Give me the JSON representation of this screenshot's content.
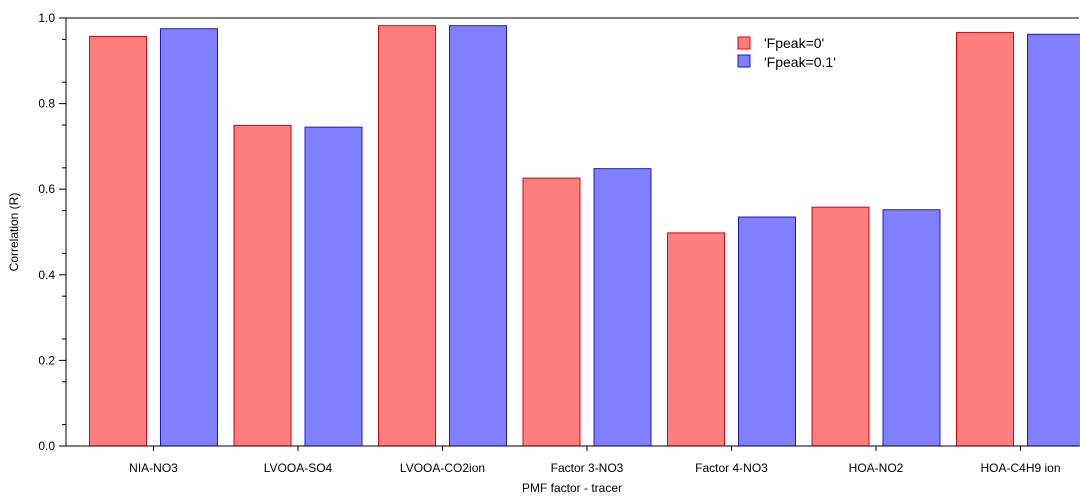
{
  "chart_data": {
    "type": "bar",
    "xlabel": "PMF factor - tracer",
    "ylabel": "Correlation (R)",
    "ylim": [
      0,
      1.0
    ],
    "yticks": [
      "0.0",
      "0.2",
      "0.4",
      "0.6",
      "0.8",
      "1.0"
    ],
    "grid": false,
    "legend_position": "top-right",
    "categories": [
      "NIA-NO3",
      "LVOOA-SO4",
      "LVOOA-CO2ion",
      "Factor 3-NO3",
      "Factor 4-NO3",
      "HOA-NO2",
      "HOA-C4H9 ion"
    ],
    "series": [
      {
        "name": "'Fpeak=0'",
        "fill": "#ff7f7f",
        "stroke": "#e8000b",
        "values": [
          0.957,
          0.749,
          0.982,
          0.626,
          0.498,
          0.558,
          0.966
        ]
      },
      {
        "name": "'Fpeak=0.1'",
        "fill": "#8080ff",
        "stroke": "#1a1ad4",
        "values": [
          0.975,
          0.745,
          0.982,
          0.648,
          0.535,
          0.552,
          0.962
        ]
      }
    ]
  }
}
